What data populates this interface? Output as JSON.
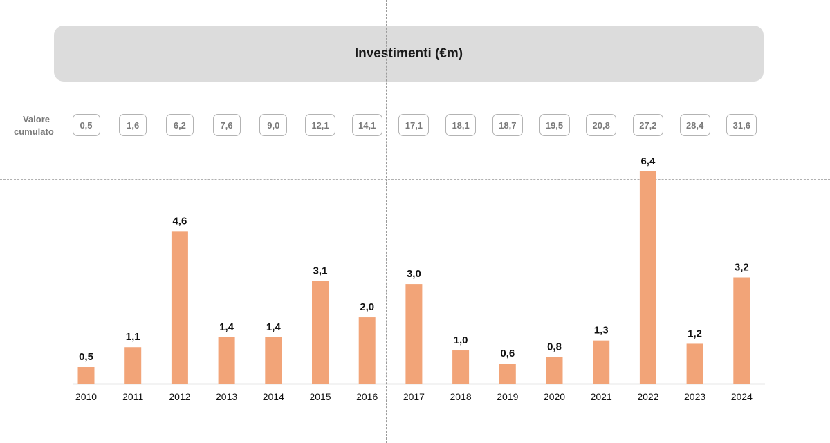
{
  "colors": {
    "bar": "#f2a478",
    "axis": "#a0a0a0",
    "banner": "#dcdcdc"
  },
  "cumulative": {
    "label_line1": "Valore",
    "label_line2": "cumulato",
    "values": [
      "0,5",
      "1,6",
      "6,2",
      "7,6",
      "9,0",
      "12,1",
      "14,1",
      "17,1",
      "18,1",
      "18,7",
      "19,5",
      "20,8",
      "27,2",
      "28,4",
      "31,6"
    ]
  },
  "chart_data": {
    "type": "bar",
    "title": "Investimenti (€m)",
    "categories": [
      "2010",
      "2011",
      "2012",
      "2013",
      "2014",
      "2015",
      "2016",
      "2017",
      "2018",
      "2019",
      "2020",
      "2021",
      "2022",
      "2023",
      "2024"
    ],
    "values": [
      0.5,
      1.1,
      4.6,
      1.4,
      1.4,
      3.1,
      2.0,
      3.0,
      1.0,
      0.6,
      0.8,
      1.3,
      6.4,
      1.2,
      3.2
    ],
    "value_labels": [
      "0,5",
      "1,1",
      "4,6",
      "1,4",
      "1,4",
      "3,1",
      "2,0",
      "3,0",
      "1,0",
      "0,6",
      "0,8",
      "1,3",
      "6,4",
      "1,2",
      "3,2"
    ],
    "xlabel": "",
    "ylabel": "",
    "ylim": [
      0,
      6.4
    ],
    "grid": false,
    "legend": "none"
  }
}
